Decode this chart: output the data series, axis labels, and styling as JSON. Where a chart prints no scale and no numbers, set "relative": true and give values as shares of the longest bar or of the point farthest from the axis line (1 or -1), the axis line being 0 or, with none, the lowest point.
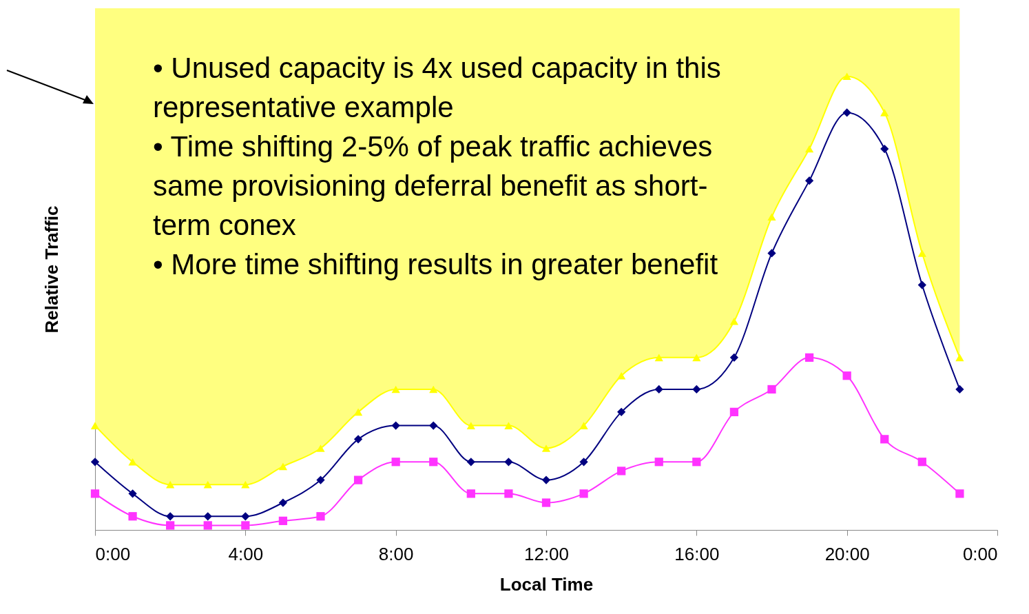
{
  "chart_data": {
    "type": "line",
    "relative": true,
    "xlabel": "Local Time",
    "ylabel": "Relative Traffic",
    "x": [
      0,
      1,
      2,
      3,
      4,
      5,
      6,
      7,
      8,
      9,
      10,
      11,
      12,
      13,
      14,
      15,
      16,
      17,
      18,
      19,
      20,
      21,
      22,
      23
    ],
    "xlim": [
      0,
      24
    ],
    "xticks": [
      {
        "value": 0,
        "label": "0:00"
      },
      {
        "value": 4,
        "label": "4:00"
      },
      {
        "value": 8,
        "label": "8:00"
      },
      {
        "value": 12,
        "label": "12:00"
      },
      {
        "value": 16,
        "label": "16:00"
      },
      {
        "value": 20,
        "label": "20:00"
      },
      {
        "value": 24,
        "label": "0:00"
      }
    ],
    "series": [
      {
        "color": "#ffff00",
        "marker": "triangle",
        "values": [
          0.23,
          0.15,
          0.1,
          0.1,
          0.1,
          0.14,
          0.18,
          0.26,
          0.31,
          0.31,
          0.23,
          0.23,
          0.18,
          0.23,
          0.34,
          0.38,
          0.38,
          0.46,
          0.69,
          0.84,
          1,
          0.92,
          0.61,
          0.38
        ],
        "lower": [
          0.23,
          0.15,
          0.1,
          0.1,
          0.1,
          0.14,
          0.18,
          0.26,
          0.31,
          0.31,
          0.23,
          0.23,
          0.18,
          0.23,
          0.34,
          0.38,
          0.38,
          0.46,
          0.69,
          0.84,
          1,
          0.92,
          0.61,
          0.38
        ],
        "upper": [
          1.15,
          1.15,
          1.15,
          1.15,
          1.15,
          1.15,
          1.15,
          1.15,
          1.15,
          1.15,
          1.15,
          1.15,
          1.15,
          1.15,
          1.15,
          1.15,
          1.15,
          1.15,
          1.15,
          1.15,
          1.15,
          1.15,
          1.15,
          1.15
        ]
      },
      {
        "color": "#000080",
        "marker": "diamond",
        "values": [
          0.15,
          0.08,
          0.03,
          0.03,
          0.03,
          0.06,
          0.11,
          0.2,
          0.23,
          0.23,
          0.15,
          0.15,
          0.11,
          0.15,
          0.26,
          0.31,
          0.31,
          0.38,
          0.61,
          0.77,
          0.92,
          0.84,
          0.54,
          0.31
        ]
      },
      {
        "color": "#ff33ff",
        "marker": "square",
        "values": [
          0.08,
          0.03,
          0.01,
          0.01,
          0.01,
          0.02,
          0.03,
          0.11,
          0.15,
          0.15,
          0.08,
          0.08,
          0.06,
          0.08,
          0.13,
          0.15,
          0.15,
          0.26,
          0.31,
          0.38,
          0.34,
          0.2,
          0.15,
          0.08
        ]
      }
    ],
    "annotations": [
      "• Unused capacity is 4x used capacity in this representative example",
      "• Time shifting 2-5% of peak traffic achieves same provisioning deferral benefit as short-term conex",
      "• More time shifting results in greater benefit"
    ]
  }
}
